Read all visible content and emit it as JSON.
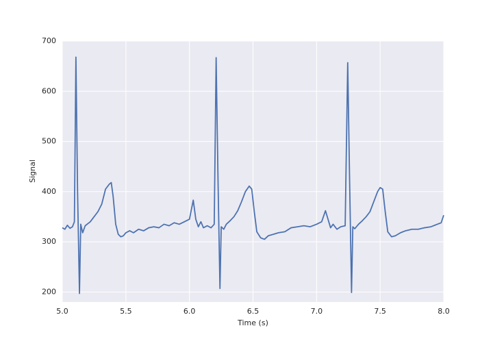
{
  "chart_data": {
    "type": "line",
    "xlabel": "Time (s)",
    "ylabel": "Signal",
    "x": [
      5.0,
      5.02,
      5.04,
      5.06,
      5.08,
      5.095,
      5.107,
      5.12,
      5.135,
      5.145,
      5.16,
      5.18,
      5.2,
      5.22,
      5.25,
      5.28,
      5.31,
      5.34,
      5.37,
      5.385,
      5.4,
      5.42,
      5.44,
      5.46,
      5.48,
      5.5,
      5.53,
      5.56,
      5.6,
      5.64,
      5.68,
      5.72,
      5.76,
      5.8,
      5.84,
      5.88,
      5.92,
      5.96,
      6.0,
      6.03,
      6.05,
      6.07,
      6.09,
      6.11,
      6.14,
      6.17,
      6.195,
      6.21,
      6.225,
      6.24,
      6.25,
      6.27,
      6.29,
      6.32,
      6.35,
      6.38,
      6.41,
      6.44,
      6.47,
      6.49,
      6.51,
      6.53,
      6.56,
      6.59,
      6.62,
      6.66,
      6.7,
      6.75,
      6.8,
      6.85,
      6.9,
      6.95,
      7.0,
      7.04,
      7.07,
      7.09,
      7.11,
      7.13,
      7.16,
      7.19,
      7.225,
      7.245,
      7.26,
      7.275,
      7.285,
      7.3,
      7.33,
      7.36,
      7.39,
      7.42,
      7.45,
      7.48,
      7.5,
      7.52,
      7.54,
      7.56,
      7.59,
      7.62,
      7.66,
      7.7,
      7.75,
      7.8,
      7.85,
      7.9,
      7.95,
      7.98,
      8.0
    ],
    "series": [
      {
        "name": "Signal",
        "color": "#4c72b0",
        "values": [
          328,
          325,
          333,
          327,
          330,
          340,
          668,
          400,
          197,
          335,
          318,
          332,
          336,
          340,
          350,
          360,
          375,
          405,
          415,
          418,
          390,
          335,
          315,
          310,
          312,
          318,
          322,
          318,
          325,
          322,
          328,
          330,
          328,
          335,
          332,
          338,
          335,
          340,
          345,
          383,
          345,
          330,
          340,
          328,
          332,
          328,
          335,
          667,
          420,
          207,
          330,
          325,
          335,
          342,
          350,
          362,
          380,
          400,
          411,
          405,
          360,
          320,
          308,
          305,
          312,
          315,
          318,
          320,
          328,
          330,
          332,
          330,
          335,
          340,
          362,
          345,
          328,
          335,
          325,
          330,
          332,
          657,
          420,
          199,
          330,
          326,
          335,
          342,
          350,
          360,
          380,
          400,
          408,
          405,
          360,
          320,
          310,
          312,
          318,
          322,
          325,
          325,
          328,
          330,
          335,
          338,
          353
        ]
      }
    ],
    "xlim": [
      5,
      8
    ],
    "ylim": [
      180,
      700
    ],
    "xticks": [
      {
        "value": 5,
        "label": "5.0"
      },
      5.5,
      {
        "value": 6,
        "label": "6.0"
      },
      6.5,
      {
        "value": 7,
        "label": "7.0"
      },
      7.5,
      {
        "value": 8,
        "label": "8.0"
      }
    ],
    "yticks": [
      200,
      300,
      400,
      500,
      600,
      700
    ],
    "grid": true
  }
}
